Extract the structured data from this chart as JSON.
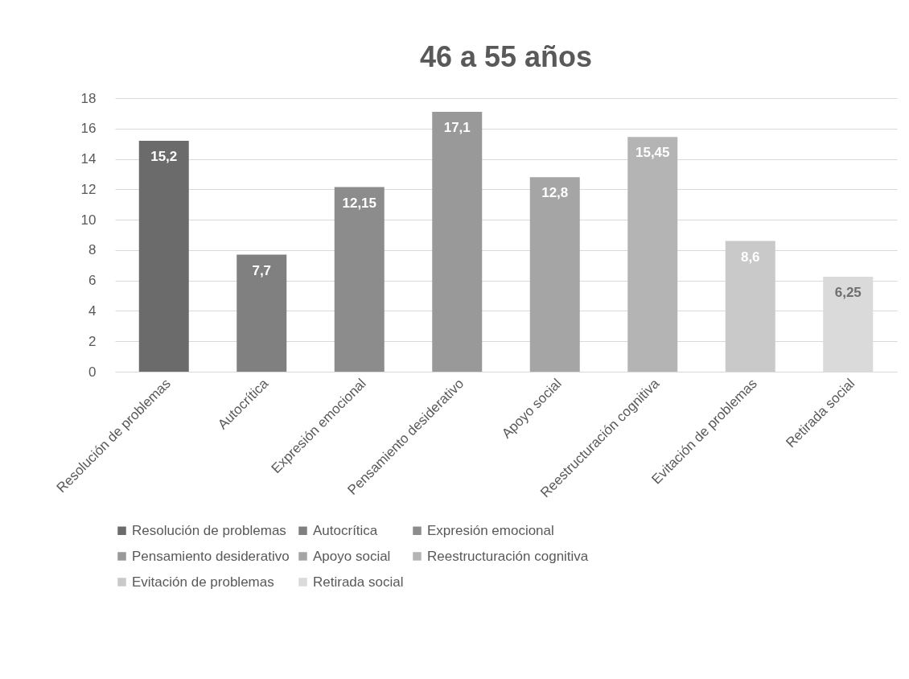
{
  "chart_data": {
    "type": "bar",
    "title": "46 a 55 años",
    "categories": [
      "Resolución de problemas",
      "Autocrítica",
      "Expresión emocional",
      "Pensamiento desiderativo",
      "Apoyo social",
      "Reestructuración cognitiva",
      "Evitación de problemas",
      "Retirada social"
    ],
    "series": [
      {
        "name": "Resolución de problemas",
        "color": "#6b6b6b",
        "values": [
          15.2,
          null,
          null,
          null,
          null,
          null,
          null,
          null
        ],
        "value_labels": [
          "15,2",
          null,
          null,
          null,
          null,
          null,
          null,
          null
        ]
      },
      {
        "name": "Autocrítica",
        "color": "#808080",
        "values": [
          null,
          7.7,
          null,
          null,
          null,
          null,
          null,
          null
        ],
        "value_labels": [
          null,
          "7,7",
          null,
          null,
          null,
          null,
          null,
          null
        ]
      },
      {
        "name": "Expresión emocional",
        "color": "#8c8c8c",
        "values": [
          null,
          null,
          12.15,
          null,
          null,
          null,
          null,
          null
        ],
        "value_labels": [
          null,
          null,
          "12,15",
          null,
          null,
          null,
          null,
          null
        ]
      },
      {
        "name": "Pensamiento desiderativo",
        "color": "#999999",
        "values": [
          null,
          null,
          null,
          17.1,
          null,
          null,
          null,
          null
        ],
        "value_labels": [
          null,
          null,
          null,
          "17,1",
          null,
          null,
          null,
          null
        ]
      },
      {
        "name": "Apoyo social",
        "color": "#a5a5a5",
        "values": [
          null,
          null,
          null,
          null,
          12.8,
          null,
          null,
          null
        ],
        "value_labels": [
          null,
          null,
          null,
          null,
          "12,8",
          null,
          null,
          null
        ]
      },
      {
        "name": "Reestructuración cognitiva",
        "color": "#b4b4b4",
        "values": [
          null,
          null,
          null,
          null,
          null,
          15.45,
          null,
          null
        ],
        "value_labels": [
          null,
          null,
          null,
          null,
          null,
          "15,45",
          null,
          null
        ]
      },
      {
        "name": "Evitación de problemas",
        "color": "#c9c9c9",
        "values": [
          null,
          null,
          null,
          null,
          null,
          null,
          8.6,
          null
        ],
        "value_labels": [
          null,
          null,
          null,
          null,
          null,
          null,
          "8,6",
          null
        ]
      },
      {
        "name": "Retirada social",
        "color": "#dadada",
        "values": [
          null,
          null,
          null,
          null,
          null,
          null,
          null,
          6.25
        ],
        "value_labels": [
          null,
          null,
          null,
          null,
          null,
          null,
          null,
          "6,25"
        ]
      }
    ],
    "ylim": [
      0,
      18
    ],
    "yticks": [
      0,
      2,
      4,
      6,
      8,
      10,
      12,
      14,
      16,
      18
    ],
    "grid": "y",
    "legend": "bottom"
  }
}
